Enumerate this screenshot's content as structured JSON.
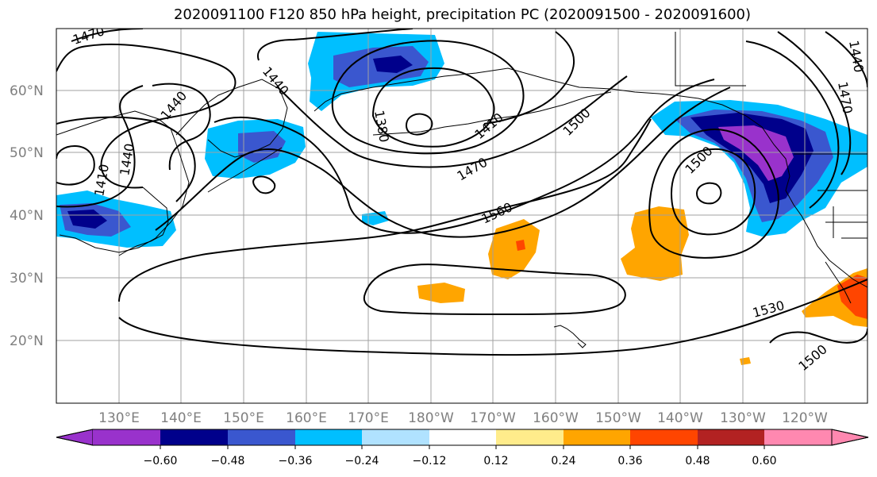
{
  "title": "2020091100 F120 850 hPa height, precipitation PC (2020091500 - 2020091600)",
  "lat_labels": [
    "60°N",
    "50°N",
    "40°N",
    "30°N",
    "20°N"
  ],
  "lon_labels": [
    "130°E",
    "140°E",
    "150°E",
    "160°E",
    "170°E",
    "180°W",
    "170°W",
    "160°W",
    "150°W",
    "140°W",
    "130°W",
    "120°W"
  ],
  "contour_labels": [
    "1470",
    "1440",
    "1440",
    "1410",
    "1440",
    "1380",
    "1410",
    "1500",
    "1470",
    "1560",
    "1500",
    "1530",
    "1500",
    "1470",
    "1440"
  ],
  "colorbar": {
    "ticks": [
      "−0.60",
      "−0.48",
      "−0.36",
      "−0.24",
      "−0.12",
      "0.12",
      "0.24",
      "0.36",
      "0.48",
      "0.60"
    ],
    "colors": [
      "#9932cc",
      "#00008b",
      "#3a57cf",
      "#00bfff",
      "#b0e2ff",
      "#ffffff",
      "#ffec8b",
      "#ffa500",
      "#ff4500",
      "#b22222",
      "#ff88b0"
    ]
  },
  "colors": {
    "purple": "#9932cc",
    "navy": "#00008b",
    "royal": "#3a57cf",
    "sky": "#00bfff",
    "light_blue": "#b0e2ff",
    "yellow": "#ffec8b",
    "orange": "#ffa500",
    "orange_red": "#ff4500",
    "dark_red": "#b22222",
    "pink": "#ff88b0"
  }
}
